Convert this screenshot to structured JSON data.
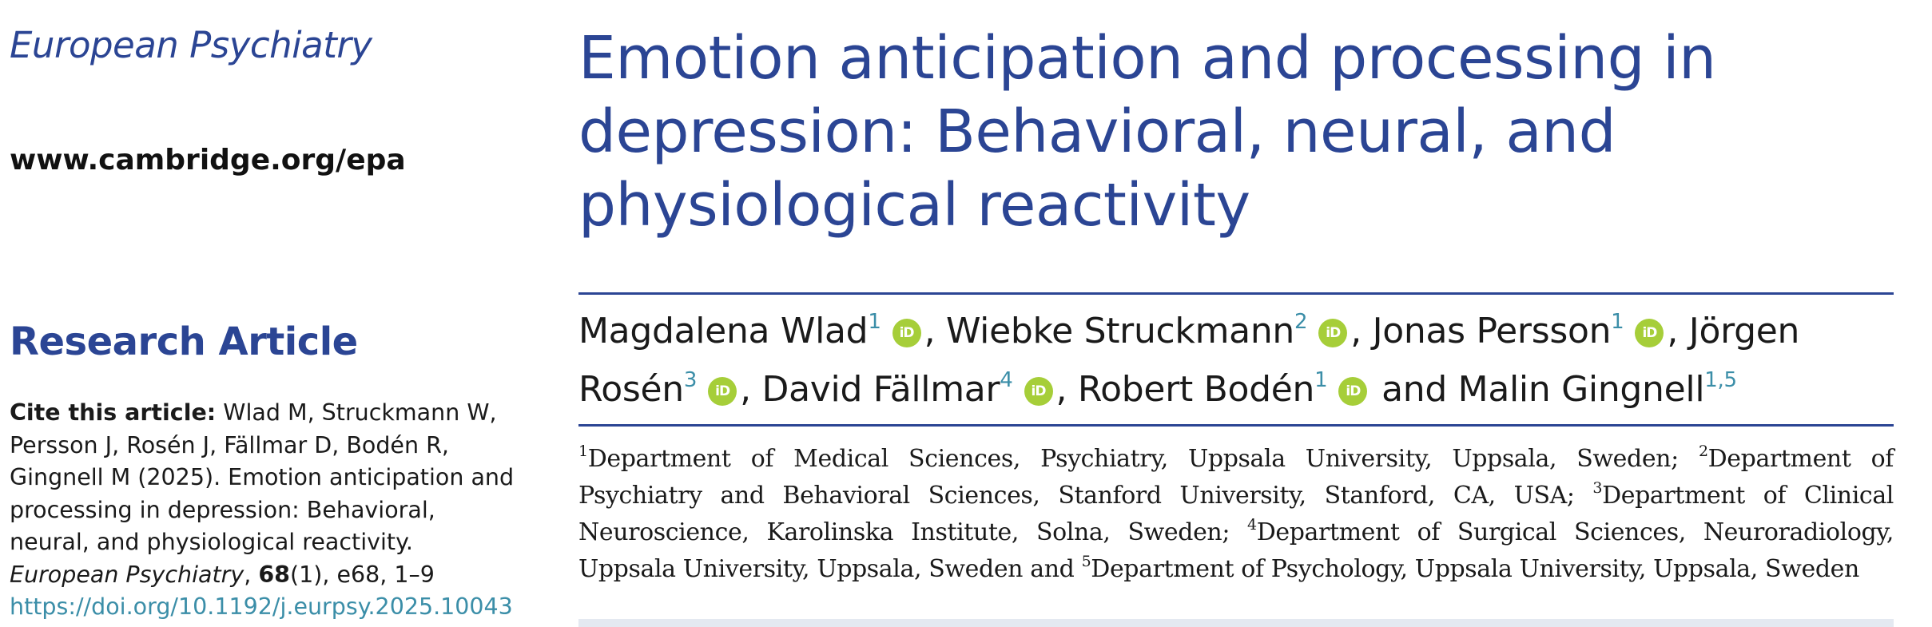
{
  "journal": {
    "name": "European Psychiatry",
    "url": "www.cambridge.org/epa"
  },
  "article_type": "Research Article",
  "citation": {
    "label": "Cite this article:",
    "text_before_journal": "Wlad M, Struckmann W, Persson J, Rosén J, Fällmar D, Bodén R, Gingnell M (2025). Emotion anticipation and processing in depression: Behavioral, neural, and physiological reactivity.",
    "journal_italic": "European Psychiatry",
    "volume": "68",
    "issue_pages": "(1), e68, 1–9",
    "doi": "https://doi.org/10.1192/j.eurpsy.2025.10043"
  },
  "title": "Emotion anticipation and processing in depression: Behavioral, neural, and physiological reactivity",
  "orcid_icon_text": "iD",
  "authors": [
    {
      "name": "Magdalena Wlad",
      "sup": "1",
      "orcid": true,
      "sep": ", "
    },
    {
      "name": "Wiebke Struckmann",
      "sup": "2",
      "orcid": true,
      "sep": ", "
    },
    {
      "name": "Jonas Persson",
      "sup": "1",
      "orcid": true,
      "sep": ", "
    },
    {
      "name": "Jörgen Rosén",
      "sup": "3",
      "orcid": true,
      "sep": ", "
    },
    {
      "name": "David Fällmar",
      "sup": "4",
      "orcid": true,
      "sep": ", "
    },
    {
      "name": "Robert Bodén",
      "sup": "1",
      "orcid": true,
      "sep": " and "
    },
    {
      "name": "Malin Gingnell",
      "sup": "1,5",
      "orcid": false,
      "sep": ""
    }
  ],
  "affiliations": [
    {
      "num": "1",
      "text": "Department of Medical Sciences, Psychiatry, Uppsala University, Uppsala, Sweden; "
    },
    {
      "num": "2",
      "text": "Department of Psychiatry and Behavioral Sciences, Stanford University, Stanford, CA, USA; "
    },
    {
      "num": "3",
      "text": "Department of Clinical Neuroscience, Karolinska Institute, Solna, Sweden; "
    },
    {
      "num": "4",
      "text": "Department of Surgical Sciences, Neuroradiology, Uppsala University, Uppsala, Sweden and "
    },
    {
      "num": "5",
      "text": "Department of Psychology, Uppsala University, Uppsala, Sweden"
    }
  ]
}
